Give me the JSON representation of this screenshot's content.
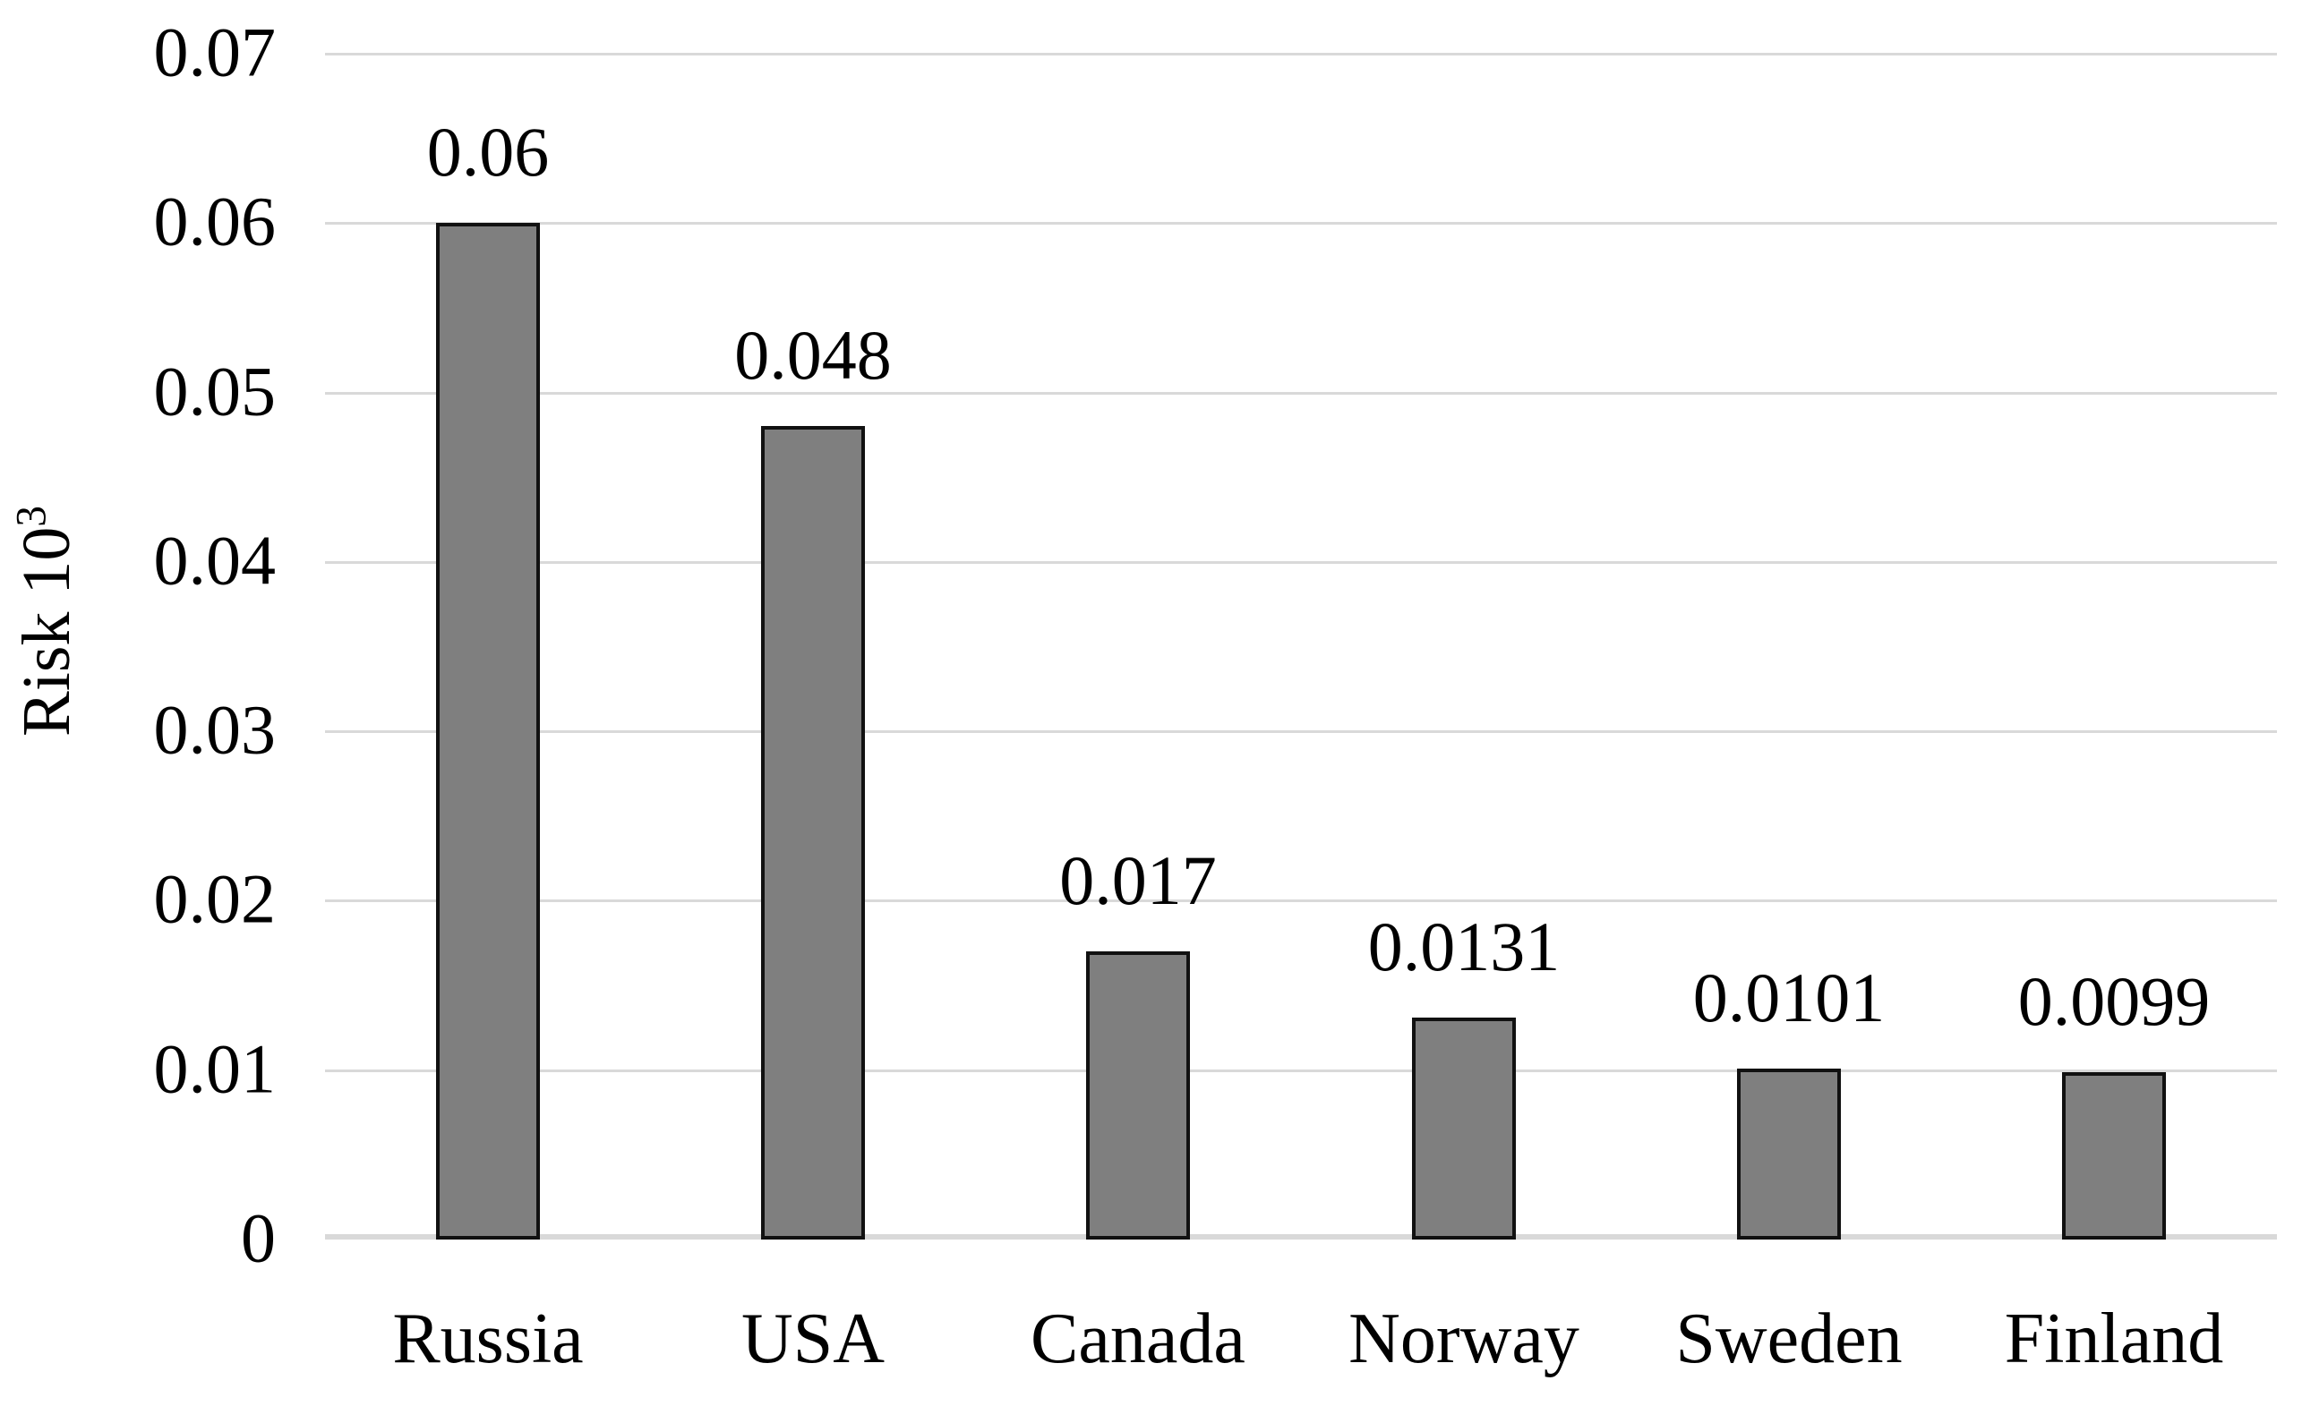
{
  "chart_data": {
    "type": "bar",
    "title": "",
    "xlabel": "",
    "ylabel": "Risk 10³",
    "ylabel_base": "Risk 10",
    "ylabel_superscript": "3",
    "categories": [
      "Russia",
      "USA",
      "Canada",
      "Norway",
      "Sweden",
      "Finland"
    ],
    "values": [
      0.06,
      0.048,
      0.017,
      0.0131,
      0.0101,
      0.0099
    ],
    "data_labels": [
      "0.06",
      "0.048",
      "0.017",
      "0.0131",
      "0.0101",
      "0.0099"
    ],
    "ylim": [
      0,
      0.07
    ],
    "ytick_step": 0.01,
    "yticks": [
      "0.07",
      "0.06",
      "0.05",
      "0.04",
      "0.03",
      "0.02",
      "0.01",
      "0"
    ],
    "grid": true,
    "legend": false,
    "data_label_position": "outside-end",
    "colors": {
      "bar_fill": "#7f7f7f",
      "bar_border": "#111111",
      "gridline": "#d9d9d9",
      "baseline": "#d9d9d9",
      "text": "#000000",
      "background": "#ffffff"
    }
  }
}
